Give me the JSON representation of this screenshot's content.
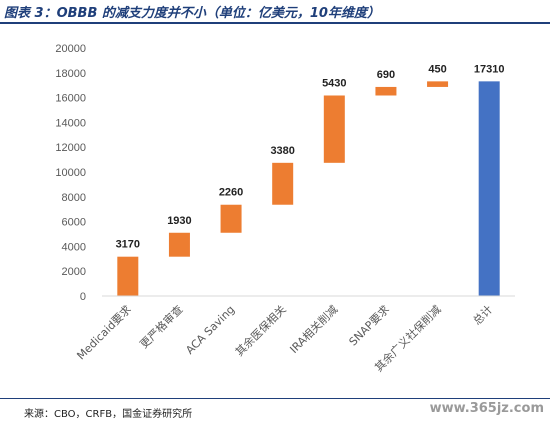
{
  "header": {
    "title": "图表 3：OBBB 的减支力度并不小（单位：亿美元，10年维度）"
  },
  "footer": {
    "source": "来源：CBO，CRFB，国金证券研究所",
    "watermark": "www.365jz.com"
  },
  "colors": {
    "increment": "#ed7d31",
    "total": "#4472c4",
    "title": "#1f3f7a",
    "axis_text": "#595959"
  },
  "chart_data": {
    "type": "bar",
    "subtype": "waterfall",
    "categories": [
      "Medicaid要求",
      "更严格审查",
      "ACA Saving",
      "其余医保相关",
      "IRA相关削减",
      "SNAP要求",
      "其余广义社保削减",
      "总计"
    ],
    "values": [
      3170,
      1930,
      2260,
      3380,
      5430,
      690,
      450,
      17310
    ],
    "value_labels": [
      "3170",
      "1930",
      "2260",
      "3380",
      "5430",
      "690",
      "450",
      "17310"
    ],
    "ylim": [
      0,
      20000
    ],
    "yticks": [
      0,
      2000,
      4000,
      6000,
      8000,
      10000,
      12000,
      14000,
      16000,
      18000,
      20000
    ],
    "ytick_labels": [
      "0",
      "2000",
      "4000",
      "6000",
      "8000",
      "10000",
      "12000",
      "14000",
      "16000",
      "18000",
      "20000"
    ],
    "grid": false,
    "legend": "none"
  }
}
